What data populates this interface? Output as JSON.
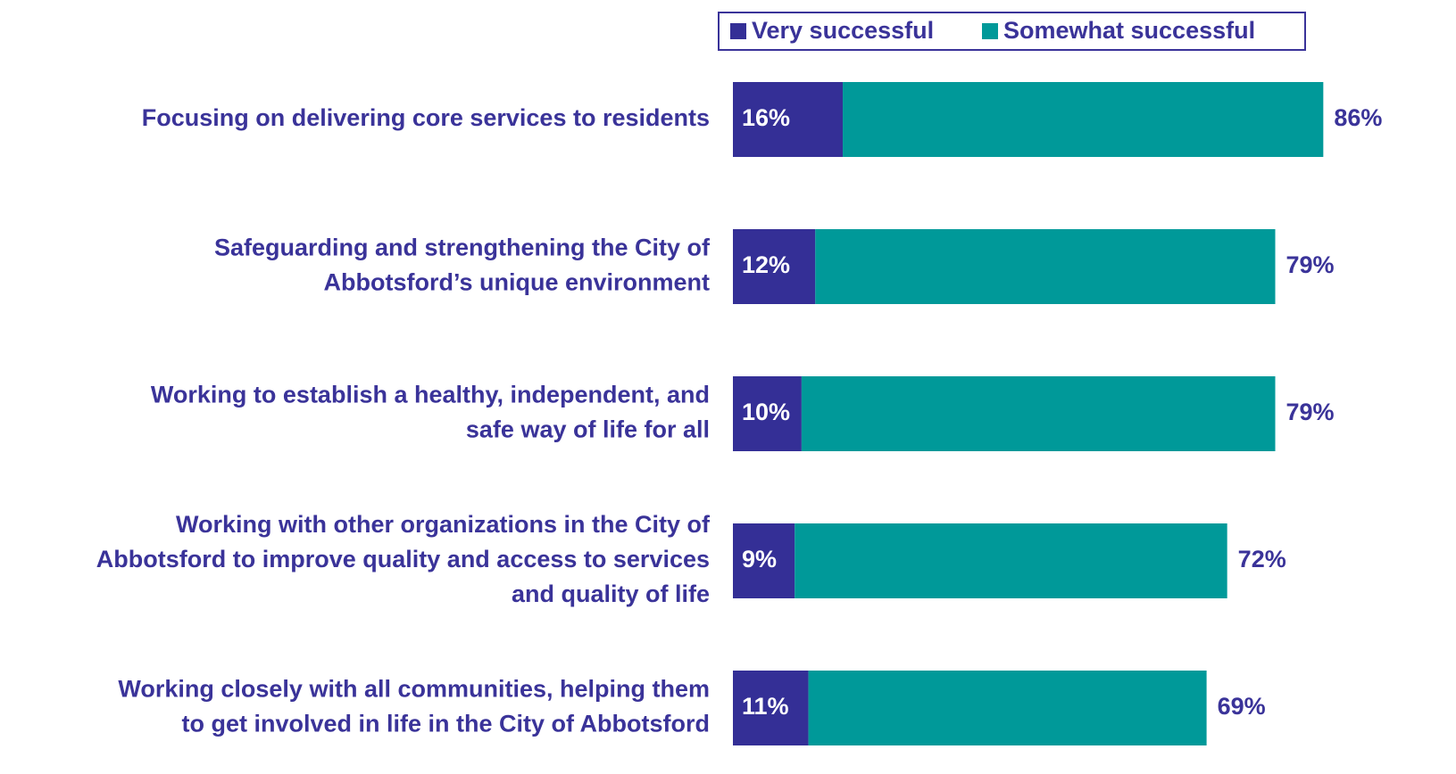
{
  "chart_data": {
    "type": "stacked-bar-horizontal",
    "categories": [
      [
        "Focusing on delivering core services to residents"
      ],
      [
        "Safeguarding and strengthening the City of",
        "Abbotsford’s unique environment"
      ],
      [
        "Working to establish a healthy, independent, and",
        "safe way of life for all"
      ],
      [
        "Working with other organizations in the City of",
        "Abbotsford to improve quality and access to services",
        "and quality of life"
      ],
      [
        "Working closely with all communities, helping them",
        "to get involved in life in the City of Abbotsford"
      ]
    ],
    "series": [
      {
        "name": "Very successful",
        "color": "#342f96",
        "values": [
          16,
          12,
          10,
          9,
          11
        ],
        "value_labels": [
          "16%",
          "12%",
          "10%",
          "9%",
          "11%"
        ]
      },
      {
        "name": "Somewhat successful",
        "color": "#009999",
        "values": [
          70,
          67,
          69,
          63,
          58
        ]
      }
    ],
    "totals": [
      86,
      79,
      79,
      72,
      69
    ],
    "total_labels": [
      "86%",
      "79%",
      "79%",
      "72%",
      "69%"
    ],
    "legend": "top-right"
  }
}
